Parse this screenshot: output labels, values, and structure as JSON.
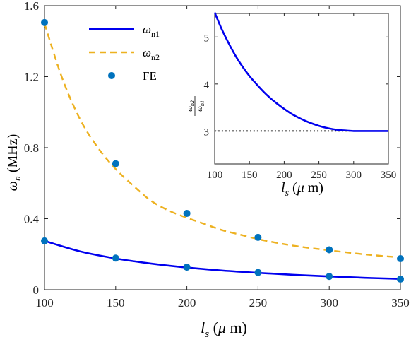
{
  "chart_data": [
    {
      "type": "line",
      "xlabel": "l_s (μ m)",
      "ylabel": "ω_n (MHz)",
      "xlim": [
        100,
        350
      ],
      "ylim": [
        0,
        1.6
      ],
      "xticks": [
        "100",
        "150",
        "200",
        "250",
        "300",
        "350"
      ],
      "yticks": [
        "0",
        "0.4",
        "0.8",
        "1.2",
        "1.6"
      ],
      "legend_position": "top-left",
      "series": [
        {
          "name": "ω_n1",
          "style": "solid",
          "color": "#0000ee",
          "x": [
            100,
            125,
            150,
            175,
            200,
            225,
            250,
            275,
            300,
            325,
            350
          ],
          "y": [
            0.275,
            0.216,
            0.176,
            0.147,
            0.125,
            0.108,
            0.095,
            0.084,
            0.075,
            0.067,
            0.061
          ]
        },
        {
          "name": "ω_n2",
          "style": "dashed",
          "color": "#edb120",
          "x": [
            100,
            112.5,
            125,
            137.5,
            150,
            162.5,
            175,
            187.5,
            200,
            212.5,
            225,
            237.5,
            250,
            262.5,
            275,
            287.5,
            300,
            312.5,
            325,
            337.5,
            350
          ],
          "y": [
            1.5,
            1.19,
            0.96,
            0.8,
            0.68,
            0.585,
            0.5,
            0.445,
            0.405,
            0.37,
            0.335,
            0.31,
            0.285,
            0.265,
            0.248,
            0.234,
            0.222,
            0.21,
            0.199,
            0.19,
            0.182
          ]
        },
        {
          "name": "FE",
          "style": "markers",
          "color": "#0072bd",
          "points": [
            [
              100,
              1.505
            ],
            [
              150,
              0.71
            ],
            [
              200,
              0.43
            ],
            [
              250,
              0.295
            ],
            [
              300,
              0.225
            ],
            [
              350,
              0.175
            ],
            [
              100,
              0.275
            ],
            [
              150,
              0.178
            ],
            [
              200,
              0.127
            ],
            [
              250,
              0.097
            ],
            [
              300,
              0.075
            ],
            [
              350,
              0.06
            ]
          ]
        }
      ]
    },
    {
      "type": "line",
      "xlabel": "l_s (μ m)",
      "ylabel": "ω_n2 / ω_n1",
      "xlim": [
        100,
        350
      ],
      "ylim": [
        2.3,
        5.5
      ],
      "xticks": [
        "100",
        "150",
        "200",
        "250",
        "300",
        "350"
      ],
      "yticks": [
        "3",
        "4",
        "5"
      ],
      "series": [
        {
          "style": "solid",
          "color": "#0000ee",
          "x": [
            100,
            110,
            120,
            130,
            140,
            150,
            160,
            170,
            180,
            190,
            200,
            210,
            220,
            230,
            240,
            250,
            260,
            270,
            280,
            290,
            300,
            310,
            320,
            330,
            340,
            350
          ],
          "y": [
            5.52,
            5.17,
            4.87,
            4.6,
            4.37,
            4.17,
            4.0,
            3.84,
            3.7,
            3.58,
            3.47,
            3.37,
            3.29,
            3.22,
            3.16,
            3.11,
            3.07,
            3.04,
            3.02,
            3.01,
            3.0,
            3.0,
            3.0,
            3.0,
            3.0,
            3.0
          ]
        },
        {
          "style": "dotted",
          "color": "#000000",
          "x": [
            100,
            350
          ],
          "y": [
            3,
            3
          ]
        }
      ]
    }
  ]
}
